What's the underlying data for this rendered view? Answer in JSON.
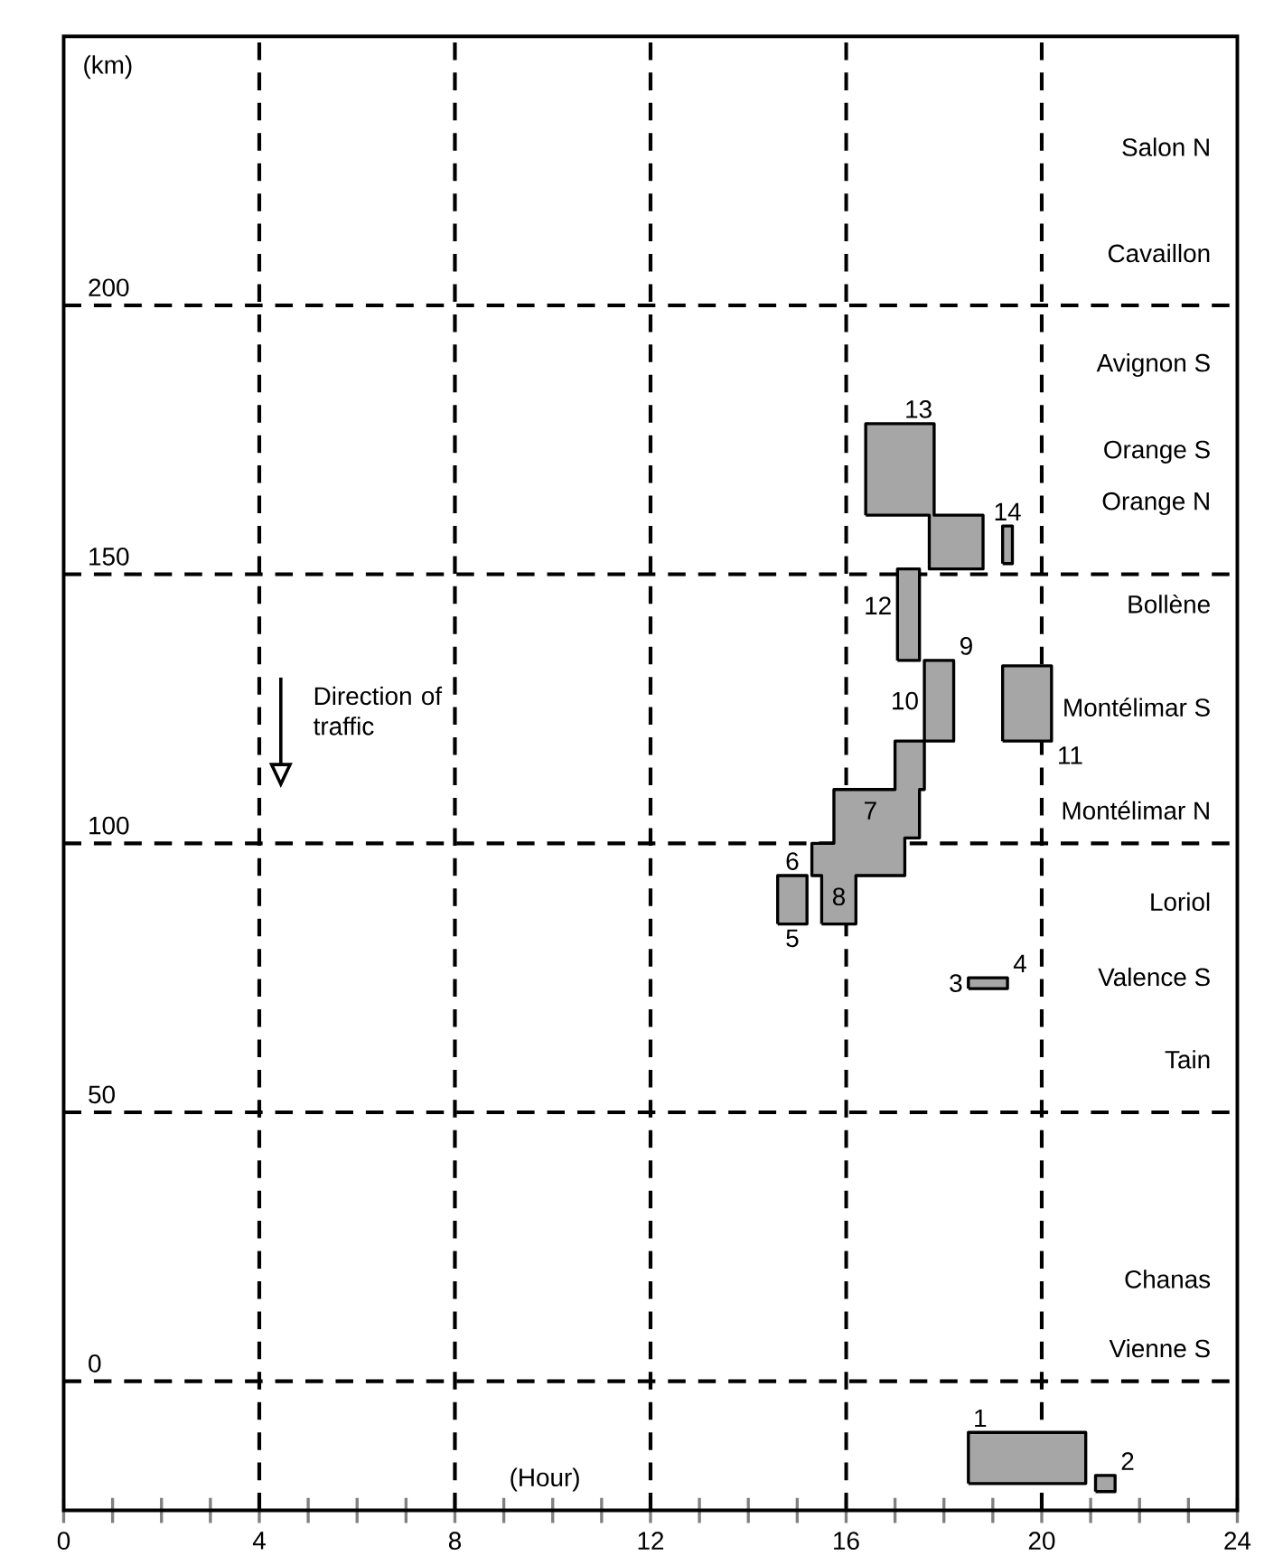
{
  "chart_data": {
    "type": "area",
    "xlabel": "(Hour)",
    "ylabel": "(km)",
    "xlim": [
      0,
      24
    ],
    "ylim": [
      -24,
      250
    ],
    "xticks": [
      0,
      {
        "value": 1,
        "label": null
      },
      {
        "value": 2,
        "label": null
      },
      {
        "value": 3,
        "label": null
      },
      4,
      {
        "value": 5,
        "label": null
      },
      {
        "value": 6,
        "label": null
      },
      {
        "value": 7,
        "label": null
      },
      8,
      {
        "value": 9,
        "label": null
      },
      {
        "value": 10,
        "label": null
      },
      {
        "value": 11,
        "label": null
      },
      12,
      {
        "value": 13,
        "label": null
      },
      {
        "value": 14,
        "label": null
      },
      {
        "value": 15,
        "label": null
      },
      16,
      {
        "value": 17,
        "label": null
      },
      {
        "value": 18,
        "label": null
      },
      {
        "value": 19,
        "label": null
      },
      20,
      {
        "value": 21,
        "label": null
      },
      {
        "value": 22,
        "label": null
      },
      {
        "value": 23,
        "label": null
      },
      24
    ],
    "yticks": [
      0,
      50,
      100,
      150,
      200
    ],
    "grid": true,
    "series": [
      {
        "color": "#a6a6a6",
        "x": [
          18.5,
          20.9,
          20.9,
          18.5,
          18.5
        ],
        "values": [
          -19,
          -19,
          -9.5,
          -9.5,
          -19
        ]
      },
      {
        "color": "#a6a6a6",
        "x": [
          21.1,
          21.5,
          21.5,
          21.1,
          21.1
        ],
        "values": [
          -20.5,
          -20.5,
          -17.5,
          -17.5,
          -20.5
        ]
      },
      {
        "color": "#a6a6a6",
        "x": [
          18.5,
          19.3,
          19.3,
          18.5,
          18.5
        ],
        "values": [
          73,
          73,
          75,
          75,
          73
        ]
      },
      {
        "color": "#a6a6a6",
        "x": [
          14.6,
          15.2,
          15.2,
          14.6,
          14.6
        ],
        "values": [
          85,
          85,
          94,
          94,
          85
        ]
      },
      {
        "color": "#a6a6a6",
        "x": [
          15.5,
          16.2,
          16.2,
          17.2,
          17.2,
          17.5,
          17.5,
          17.6,
          17.6,
          17.0,
          17.0,
          15.75,
          15.75,
          15.3,
          15.3,
          15.5,
          15.5
        ],
        "values": [
          85,
          85,
          94,
          94,
          101,
          101,
          110,
          110,
          119,
          119,
          110,
          110,
          100,
          100,
          94,
          94,
          85
        ]
      },
      {
        "color": "#a6a6a6",
        "x": [
          17.6,
          18.2,
          18.2,
          17.6,
          17.6
        ],
        "values": [
          119,
          119,
          134,
          134,
          119
        ]
      },
      {
        "color": "#a6a6a6",
        "x": [
          19.2,
          20.2,
          20.2,
          19.2,
          19.2
        ],
        "values": [
          119,
          119,
          133,
          133,
          119
        ]
      },
      {
        "color": "#a6a6a6",
        "x": [
          17.05,
          17.5,
          17.5,
          17.05,
          17.05
        ],
        "values": [
          134,
          134,
          151,
          151,
          134
        ]
      },
      {
        "color": "#a6a6a6",
        "x": [
          16.4,
          17.7,
          17.7,
          18.8,
          18.8,
          17.8,
          17.8,
          16.4,
          16.4
        ],
        "values": [
          161,
          161,
          151,
          151,
          161,
          161,
          178,
          178,
          161
        ]
      },
      {
        "color": "#a6a6a6",
        "x": [
          19.2,
          19.4,
          19.4,
          19.2,
          19.2
        ],
        "values": [
          152,
          152,
          159,
          159,
          152
        ]
      }
    ],
    "annotations": [
      "1",
      "2",
      "3",
      "4",
      "5",
      "6",
      "7",
      "8",
      "9",
      "10",
      "11",
      "12",
      "13",
      "14",
      "Salon N",
      "Cavaillon",
      "Avignon S",
      "Orange S",
      "Orange N",
      "Bollène",
      "Montélimar S",
      "Montélimar N",
      "Loriol",
      "Valence S",
      "Tain",
      "Chanas",
      "Vienne S",
      "Direction of traffic"
    ]
  }
}
